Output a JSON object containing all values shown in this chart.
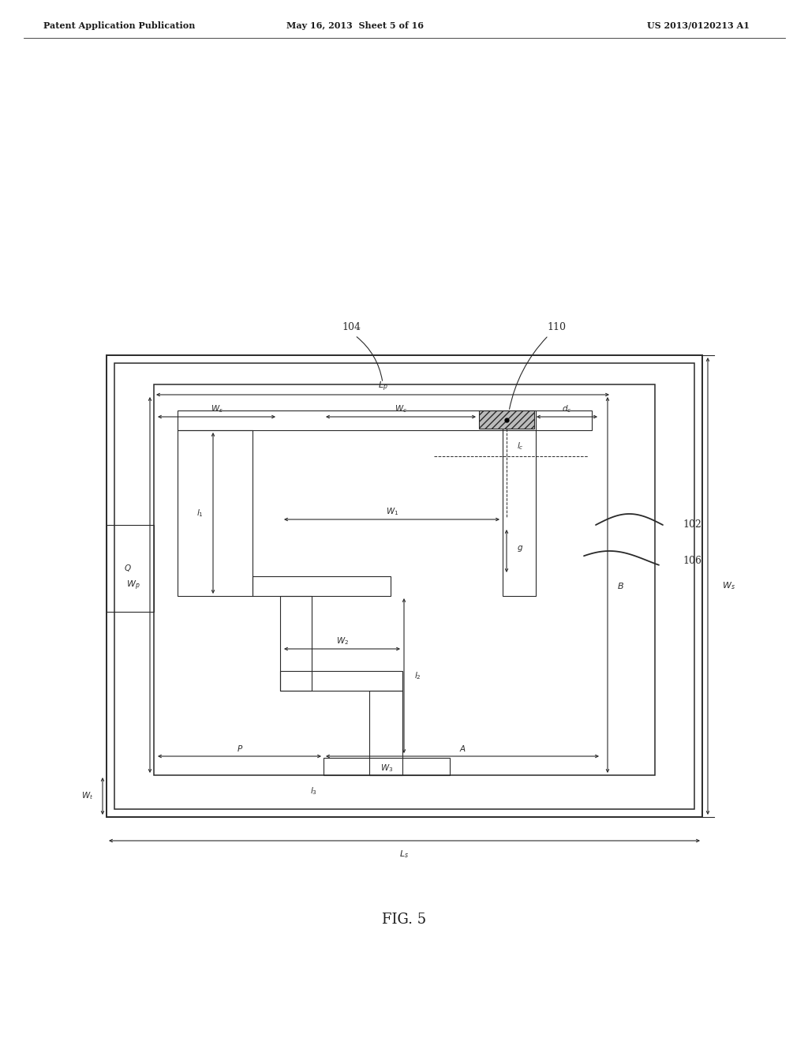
{
  "header_left": "Patent Application Publication",
  "header_center": "May 16, 2013  Sheet 5 of 16",
  "header_right": "US 2013/0120213 A1",
  "fig_label": "FIG. 5",
  "bg_color": "#ffffff",
  "line_color": "#2a2a2a"
}
